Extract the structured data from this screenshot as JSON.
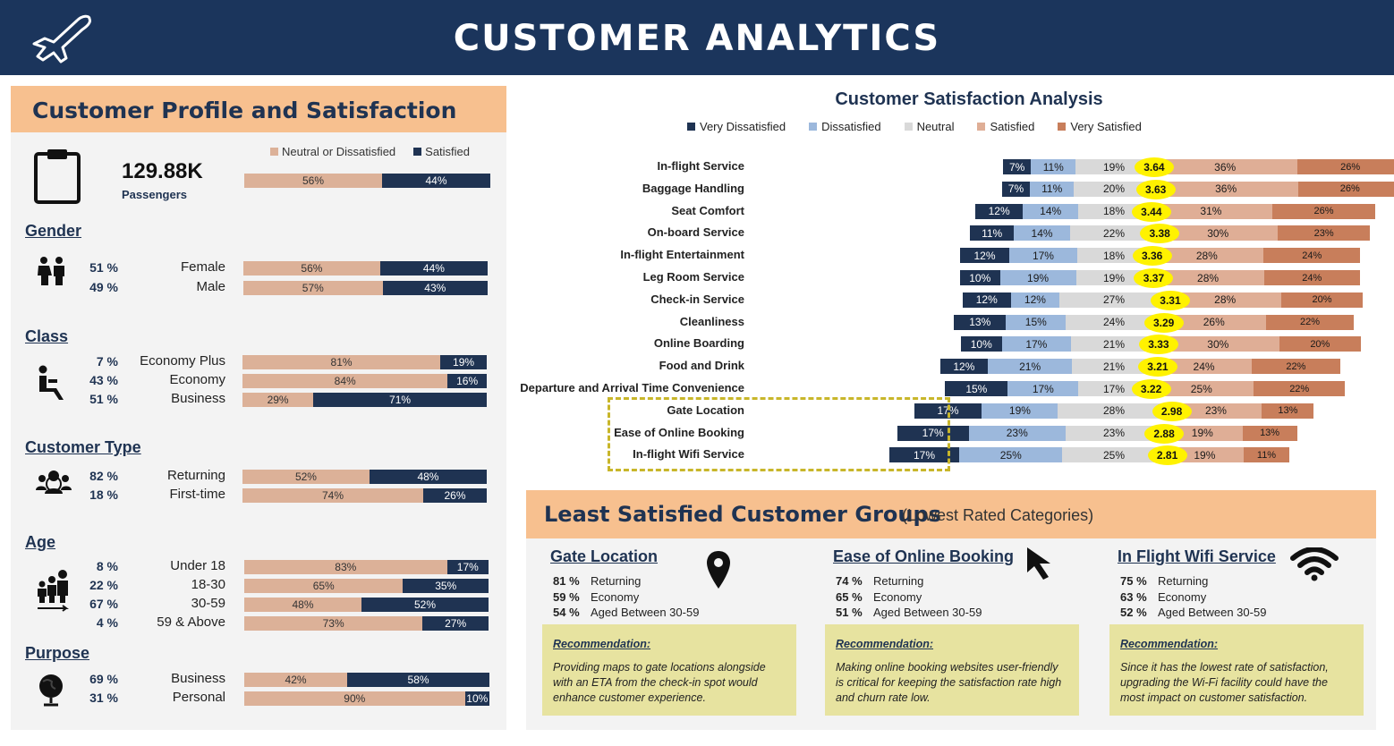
{
  "header": {
    "title": "CUSTOMER ANALYTICS",
    "icon": "airplane-icon"
  },
  "left_panel": {
    "title": "Customer Profile and Satisfaction",
    "legend": [
      "Neutral or Dissatisfied",
      "Satisfied"
    ],
    "colors": {
      "neutral": "#dcb198",
      "satisfied": "#1f3352"
    },
    "passengers": {
      "value": "129.88K",
      "label": "Passengers",
      "neutral": 56,
      "satisfied": 44,
      "neutral_label": "56%",
      "satisfied_label": "44%"
    },
    "sections": [
      {
        "title": "Gender",
        "icon": "people-icon",
        "rows": [
          {
            "pct": "51 %",
            "label": "Female",
            "neutral": 56,
            "satisfied": 44,
            "nl": "56%",
            "sl": "44%"
          },
          {
            "pct": "49 %",
            "label": "Male",
            "neutral": 57,
            "satisfied": 43,
            "nl": "57%",
            "sl": "43%"
          }
        ]
      },
      {
        "title": "Class",
        "icon": "seat-icon",
        "rows": [
          {
            "pct": "7 %",
            "label": "Economy Plus",
            "neutral": 81,
            "satisfied": 19,
            "nl": "81%",
            "sl": "19%"
          },
          {
            "pct": "43 %",
            "label": "Economy",
            "neutral": 84,
            "satisfied": 16,
            "nl": "84%",
            "sl": "16%"
          },
          {
            "pct": "51 %",
            "label": "Business",
            "neutral": 29,
            "satisfied": 71,
            "nl": "29%",
            "sl": "71%"
          }
        ]
      },
      {
        "title": "Customer Type",
        "icon": "customer-group-icon",
        "rows": [
          {
            "pct": "82 %",
            "label": "Returning",
            "neutral": 52,
            "satisfied": 48,
            "nl": "52%",
            "sl": "48%"
          },
          {
            "pct": "18 %",
            "label": "First-time",
            "neutral": 74,
            "satisfied": 26,
            "nl": "74%",
            "sl": "26%"
          }
        ]
      },
      {
        "title": "Age",
        "icon": "family-age-icon",
        "rows": [
          {
            "pct": "8 %",
            "label": "Under 18",
            "neutral": 83,
            "satisfied": 17,
            "nl": "83%",
            "sl": "17%"
          },
          {
            "pct": "22 %",
            "label": "18-30",
            "neutral": 65,
            "satisfied": 35,
            "nl": "65%",
            "sl": "35%"
          },
          {
            "pct": "67 %",
            "label": "30-59",
            "neutral": 48,
            "satisfied": 52,
            "nl": "48%",
            "sl": "52%"
          },
          {
            "pct": "4 %",
            "label": "59 & Above",
            "neutral": 73,
            "satisfied": 27,
            "nl": "73%",
            "sl": "27%"
          }
        ]
      },
      {
        "title": "Purpose",
        "icon": "globe-icon",
        "rows": [
          {
            "pct": "69 %",
            "label": "Business",
            "neutral": 42,
            "satisfied": 58,
            "nl": "42%",
            "sl": "58%"
          },
          {
            "pct": "31 %",
            "label": "Personal",
            "neutral": 90,
            "satisfied": 10,
            "nl": "90%",
            "sl": "10%"
          }
        ]
      }
    ]
  },
  "chart_data": {
    "type": "bar",
    "title": "Customer Satisfaction Analysis",
    "stacked": true,
    "diverging": true,
    "legend": [
      "Very Dissatisfied",
      "Dissatisfied",
      "Neutral",
      "Satisfied",
      "Very Satisfied"
    ],
    "legend_placement": "top",
    "colors": [
      "#1f3352",
      "#9cb8dc",
      "#d9d9d9",
      "#dfae96",
      "#c87e5b"
    ],
    "categories": [
      "In-flight Service",
      "Baggage Handling",
      "Seat Comfort",
      "On-board Service",
      "In-flight Entertainment",
      "Leg Room Service",
      "Check-in Service",
      "Cleanliness",
      "Online Boarding",
      "Food and Drink",
      "Departure and Arrival Time Convenience",
      "Gate Location",
      "Ease of Online Booking",
      "In-flight Wifi Service"
    ],
    "series": [
      {
        "name": "Very Dissatisfied",
        "values": [
          7,
          7,
          12,
          11,
          12,
          10,
          12,
          13,
          10,
          12,
          15,
          17,
          17,
          17
        ]
      },
      {
        "name": "Dissatisfied",
        "values": [
          11,
          11,
          14,
          14,
          17,
          19,
          12,
          15,
          17,
          21,
          17,
          19,
          23,
          25
        ]
      },
      {
        "name": "Neutral",
        "values": [
          19,
          20,
          18,
          22,
          18,
          19,
          27,
          24,
          21,
          21,
          17,
          28,
          23,
          25
        ]
      },
      {
        "name": "Satisfied",
        "values": [
          36,
          36,
          31,
          30,
          28,
          28,
          28,
          26,
          30,
          24,
          25,
          23,
          19,
          19
        ]
      },
      {
        "name": "Very Satisfied",
        "values": [
          26,
          26,
          26,
          23,
          24,
          24,
          20,
          22,
          20,
          22,
          22,
          13,
          13,
          11
        ]
      }
    ],
    "labels": [
      [
        "7%",
        "11%",
        "19%",
        "36%",
        "26%"
      ],
      [
        "7%",
        "11%",
        "20%",
        "36%",
        "26%"
      ],
      [
        "12%",
        "14%",
        "18%",
        "31%",
        "26%"
      ],
      [
        "11%",
        "14%",
        "22%",
        "30%",
        "23%"
      ],
      [
        "12%",
        "17%",
        "18%",
        "28%",
        "24%"
      ],
      [
        "10%",
        "19%",
        "19%",
        "28%",
        "24%"
      ],
      [
        "12%",
        "12%",
        "27%",
        "28%",
        "20%"
      ],
      [
        "13%",
        "15%",
        "24%",
        "26%",
        "22%"
      ],
      [
        "10%",
        "17%",
        "21%",
        "30%",
        "20%"
      ],
      [
        "12%",
        "21%",
        "21%",
        "24%",
        "22%"
      ],
      [
        "15%",
        "17%",
        "17%",
        "25%",
        "22%"
      ],
      [
        "17%",
        "19%",
        "28%",
        "23%",
        "13%"
      ],
      [
        "17%",
        "23%",
        "23%",
        "19%",
        "13%"
      ],
      [
        "17%",
        "25%",
        "25%",
        "19%",
        "11%"
      ]
    ],
    "scores": [
      "3.64",
      "3.63",
      "3.44",
      "3.38",
      "3.36",
      "3.37",
      "3.31",
      "3.29",
      "3.33",
      "3.21",
      "3.22",
      "2.98",
      "2.88",
      "2.81"
    ]
  },
  "least_satisfied": {
    "title": "Least Satisfied Customer Groups",
    "subtitle": "(Lowest Rated Categories)",
    "recommendation_heading": "Recommendation:",
    "groups": [
      {
        "title": "Gate Location",
        "icon": "map-pin-icon",
        "stats": [
          {
            "pct": "81 %",
            "label": "Returning"
          },
          {
            "pct": "59 %",
            "label": "Economy"
          },
          {
            "pct": "54 %",
            "label": "Aged Between 30-59"
          }
        ],
        "recommendation": "Providing maps to gate locations alongside with an ETA from the check-in spot would enhance customer experience."
      },
      {
        "title": "Ease of Online Booking",
        "icon": "cursor-arrow-icon",
        "stats": [
          {
            "pct": "74 %",
            "label": "Returning"
          },
          {
            "pct": "65 %",
            "label": "Economy"
          },
          {
            "pct": "51 %",
            "label": "Aged Between 30-59"
          }
        ],
        "recommendation": "Making online booking websites user-friendly is critical for keeping the satisfaction rate high and churn rate low."
      },
      {
        "title": "In Flight Wifi Service",
        "icon": "wifi-icon",
        "stats": [
          {
            "pct": "75 %",
            "label": "Returning"
          },
          {
            "pct": "63 %",
            "label": "Economy"
          },
          {
            "pct": "52 %",
            "label": "Aged Between 30-59"
          }
        ],
        "recommendation": "Since it has the lowest rate of satisfaction, upgrading the Wi-Fi facility could have the most impact on customer satisfaction."
      }
    ]
  }
}
